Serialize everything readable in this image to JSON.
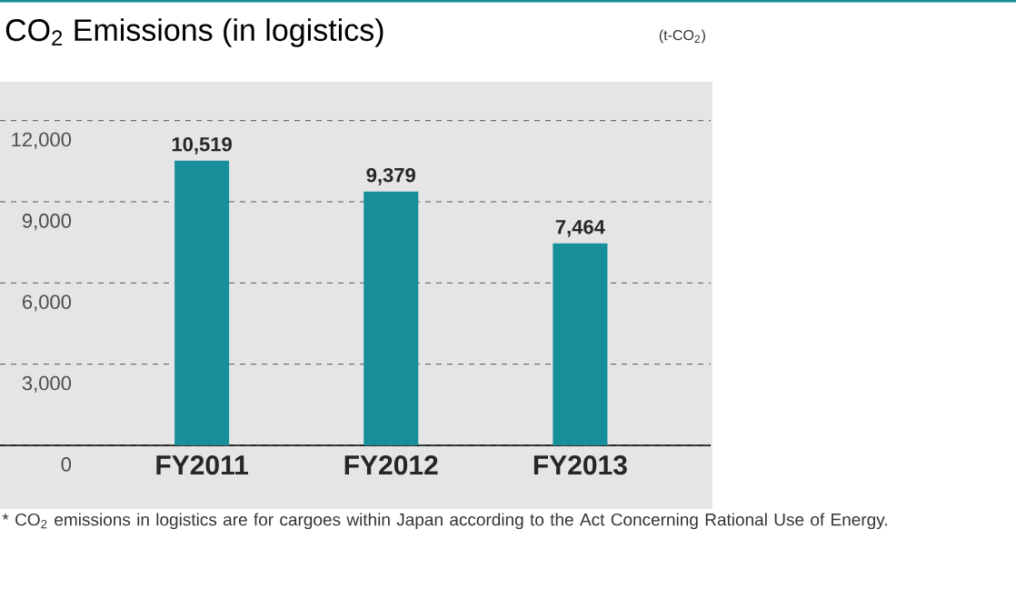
{
  "chart_data": {
    "type": "bar",
    "title": "CO$_{2}$ Emissions (in logistics)",
    "ylabel": "(t-CO$_{2}$)",
    "categories": [
      "FY2011",
      "FY2012",
      "FY2013"
    ],
    "values": [
      10519,
      9379,
      7464
    ],
    "color": "#178f9b",
    "data_labels": true,
    "value_labels": [
      "10,519",
      "9,379",
      "7,464"
    ],
    "ylim": [
      0,
      13500
    ],
    "yticks": [
      {
        "value": 0,
        "label": "0"
      },
      {
        "value": 3000,
        "label": "3,000"
      },
      {
        "value": 6000,
        "label": "6,000"
      },
      {
        "value": 9000,
        "label": "9,000"
      },
      {
        "value": 12000,
        "label": "12,000"
      }
    ],
    "grid": "y",
    "annotations": [
      "* CO$_{2}$ emissions in logistics are for cargoes within Japan according to the Act Concerning Rational Use of Energy."
    ]
  }
}
